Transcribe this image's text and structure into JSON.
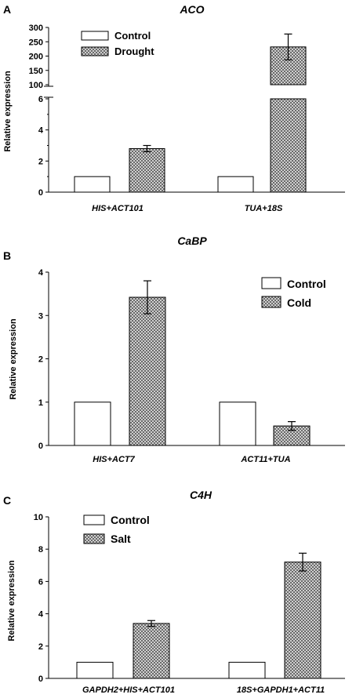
{
  "chart_data": [
    {
      "id": "A",
      "type": "bar",
      "panel_label": "A",
      "title": "ACO",
      "ylabel": "Relative expression",
      "categories": [
        "HIS+ACT101",
        "TUA+18S"
      ],
      "series": [
        {
          "name": "Control",
          "values": [
            1,
            1
          ],
          "errors": [
            0,
            0
          ]
        },
        {
          "name": "Drought",
          "values": [
            2.8,
            232
          ],
          "errors": [
            0.2,
            45
          ]
        }
      ],
      "axis_break": {
        "lower": [
          0,
          6
        ],
        "upper": [
          100,
          300
        ]
      },
      "yticks_lower": [
        0,
        2,
        4,
        6
      ],
      "yticks_upper": [
        100,
        150,
        200,
        250,
        300
      ],
      "legend_position": "top-left"
    },
    {
      "id": "B",
      "type": "bar",
      "panel_label": "B",
      "title": "CaBP",
      "ylabel": "Relative expression",
      "categories": [
        "HIS+ACT7",
        "ACT11+TUA"
      ],
      "series": [
        {
          "name": "Control",
          "values": [
            1,
            1
          ],
          "errors": [
            0,
            0
          ]
        },
        {
          "name": "Cold",
          "values": [
            3.42,
            0.45
          ],
          "errors": [
            0.38,
            0.1
          ]
        }
      ],
      "ylim": [
        0,
        4
      ],
      "yticks": [
        0,
        1,
        2,
        3,
        4
      ],
      "legend_position": "top-right"
    },
    {
      "id": "C",
      "type": "bar",
      "panel_label": "C",
      "title": "C4H",
      "ylabel": "Relative expression",
      "categories": [
        "GAPDH2+HIS+ACT101",
        "18S+GAPDH1+ACT11"
      ],
      "series": [
        {
          "name": "Control",
          "values": [
            1,
            1
          ],
          "errors": [
            0,
            0
          ]
        },
        {
          "name": "Salt",
          "values": [
            3.4,
            7.2
          ],
          "errors": [
            0.18,
            0.55
          ]
        }
      ],
      "ylim": [
        0,
        10
      ],
      "yticks": [
        0,
        2,
        4,
        6,
        8,
        10
      ],
      "legend_position": "top-left"
    }
  ]
}
